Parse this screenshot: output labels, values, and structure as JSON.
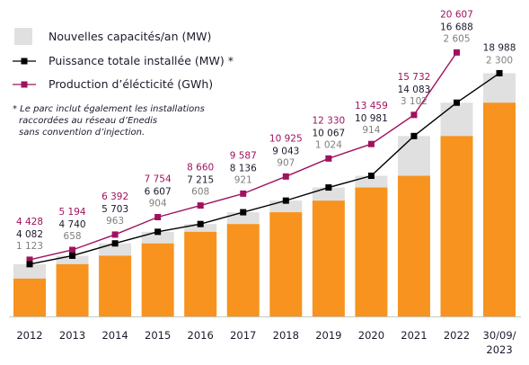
{
  "legend": {
    "capacity_label": "Nouvelles capacités/an (MW)",
    "power_label": "Puissance totale installée (MW) *",
    "production_label": "Production d’élécticité (GWh)"
  },
  "note": {
    "line1": "* Le parc inclut également les installations",
    "line2": "raccordées au réseau d’Enedis",
    "line3": "sans convention d’injection."
  },
  "colors": {
    "bar_orange": "#f7931e",
    "bar_grey": "#e0e0e0",
    "power_line": "#000000",
    "production_line": "#a0125e",
    "capacity_label": "#7f7f7f",
    "text": "#1a1a2e"
  },
  "chart_data": {
    "type": "bar",
    "categories": [
      "2012",
      "2013",
      "2014",
      "2015",
      "2016",
      "2017",
      "2018",
      "2019",
      "2020",
      "2021",
      "2022",
      "30/09/\n2023"
    ],
    "ylim": [
      0,
      22000
    ],
    "series": [
      {
        "name": "Nouvelles capacités/an (MW)",
        "type": "bar",
        "values": [
          1123,
          658,
          963,
          904,
          608,
          921,
          907,
          1024,
          914,
          3102,
          2605,
          2300
        ],
        "labels": [
          "1 123",
          "658",
          "963",
          "904",
          "608",
          "921",
          "907",
          "1 024",
          "914",
          "3 102",
          "2 605",
          "2 300"
        ]
      },
      {
        "name": "Puissance totale installée (MW) *",
        "type": "line",
        "values": [
          4082,
          4740,
          5703,
          6607,
          7215,
          8136,
          9043,
          10067,
          10981,
          14083,
          16688,
          18988
        ],
        "labels": [
          "4 082",
          "4 740",
          "5 703",
          "6 607",
          "7 215",
          "8 136",
          "9 043",
          "10 067",
          "10 981",
          "14 083",
          "16 688",
          "18 988"
        ]
      },
      {
        "name": "Production d’élécticité (GWh)",
        "type": "line",
        "values": [
          4428,
          5194,
          6392,
          7754,
          8660,
          9587,
          10925,
          12330,
          13459,
          15732,
          20607,
          null
        ],
        "labels": [
          "4 428",
          "5 194",
          "6 392",
          "7 754",
          "8 660",
          "9 587",
          "10 925",
          "12 330",
          "13 459",
          "15 732",
          "20 607",
          ""
        ]
      }
    ]
  }
}
